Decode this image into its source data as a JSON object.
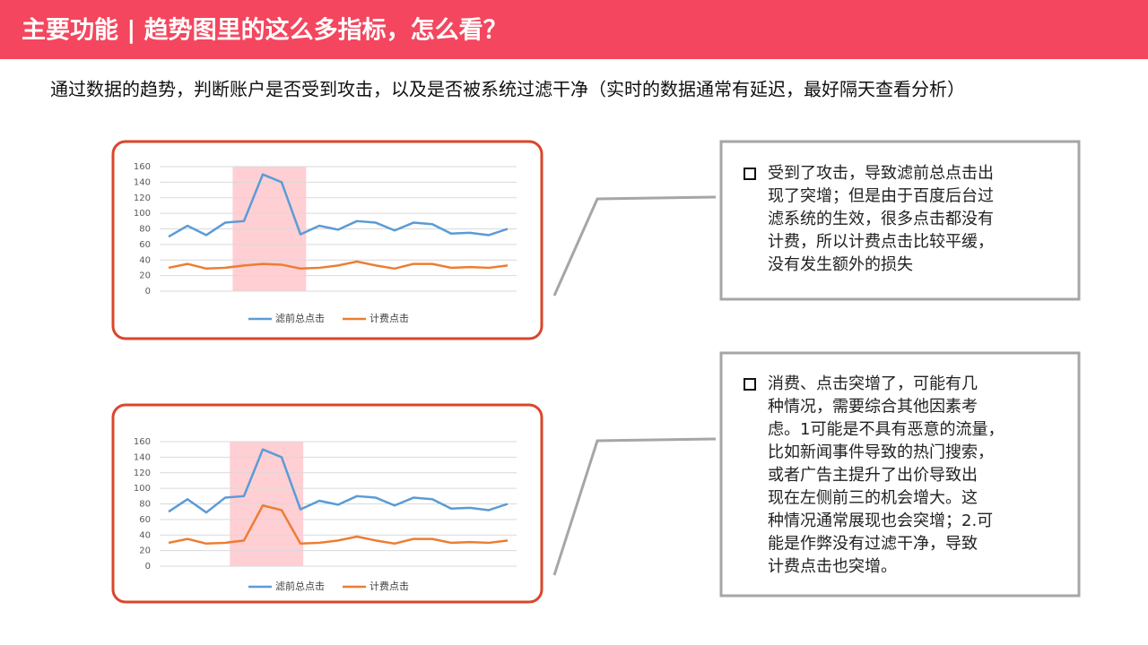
{
  "title": "主要功能 | 趋势图里的这么多指标，怎么看？",
  "subtitle": "通过数据的趋势，判断账户是否受到攻击，以及是否被系统过滤干净（实时的数据通常有延迟，最好隔天查看分析）",
  "chart_data": [
    {
      "type": "line",
      "categories": [
        null,
        null,
        null,
        null,
        null,
        null,
        null,
        null,
        null,
        null,
        null,
        null,
        null,
        null,
        null,
        null,
        null,
        null,
        null
      ],
      "series": [
        {
          "name": "滤前总点击",
          "color": "#5b9bd5",
          "values": [
            70,
            84,
            72,
            88,
            90,
            150,
            140,
            73,
            84,
            79,
            90,
            88,
            78,
            88,
            86,
            74,
            75,
            72,
            80
          ]
        },
        {
          "name": "计费点击",
          "color": "#ed7d31",
          "values": [
            30,
            35,
            29,
            30,
            33,
            35,
            34,
            29,
            30,
            33,
            38,
            33,
            29,
            35,
            35,
            30,
            31,
            30,
            33
          ]
        }
      ],
      "ylim": [
        0,
        160
      ],
      "yticks": [
        0,
        20,
        40,
        60,
        80,
        100,
        120,
        140,
        160
      ],
      "grid": true,
      "legend": "bottom"
    },
    {
      "type": "line",
      "categories": [
        null,
        null,
        null,
        null,
        null,
        null,
        null,
        null,
        null,
        null,
        null,
        null,
        null,
        null,
        null,
        null,
        null,
        null,
        null
      ],
      "series": [
        {
          "name": "滤前总点击",
          "color": "#5b9bd5",
          "values": [
            70,
            86,
            69,
            88,
            90,
            150,
            140,
            73,
            84,
            79,
            90,
            88,
            78,
            88,
            86,
            74,
            75,
            72,
            80
          ]
        },
        {
          "name": "计费点击",
          "color": "#ed7d31",
          "values": [
            30,
            35,
            29,
            30,
            33,
            78,
            72,
            29,
            30,
            33,
            38,
            33,
            29,
            35,
            35,
            30,
            31,
            30,
            33
          ]
        }
      ],
      "ylim": [
        0,
        160
      ],
      "yticks": [
        0,
        20,
        40,
        60,
        80,
        100,
        120,
        140,
        160
      ],
      "grid": true,
      "legend": "bottom"
    }
  ],
  "notes": [
    {
      "lines": [
        "受到了攻击，导致滤前总点击出",
        "现了突增；但是由于百度后台过",
        "滤系统的生效，很多点击都没有",
        "计费，所以计费点击比较平缓，",
        "没有发生额外的损失"
      ]
    },
    {
      "lines": [
        "消费、点击突增了，可能有几",
        "种情况，需要综合其他因素考",
        "虑。1可能是不具有恶意的流量，",
        "比如新闻事件导致的热门搜索，",
        "或者广告主提升了出价导致出",
        "现在左侧前三的机会增大。这",
        "种情况通常展现也会突增；2.可",
        "能是作弊没有过滤干净，导致",
        "计费点击也突增。"
      ]
    }
  ]
}
